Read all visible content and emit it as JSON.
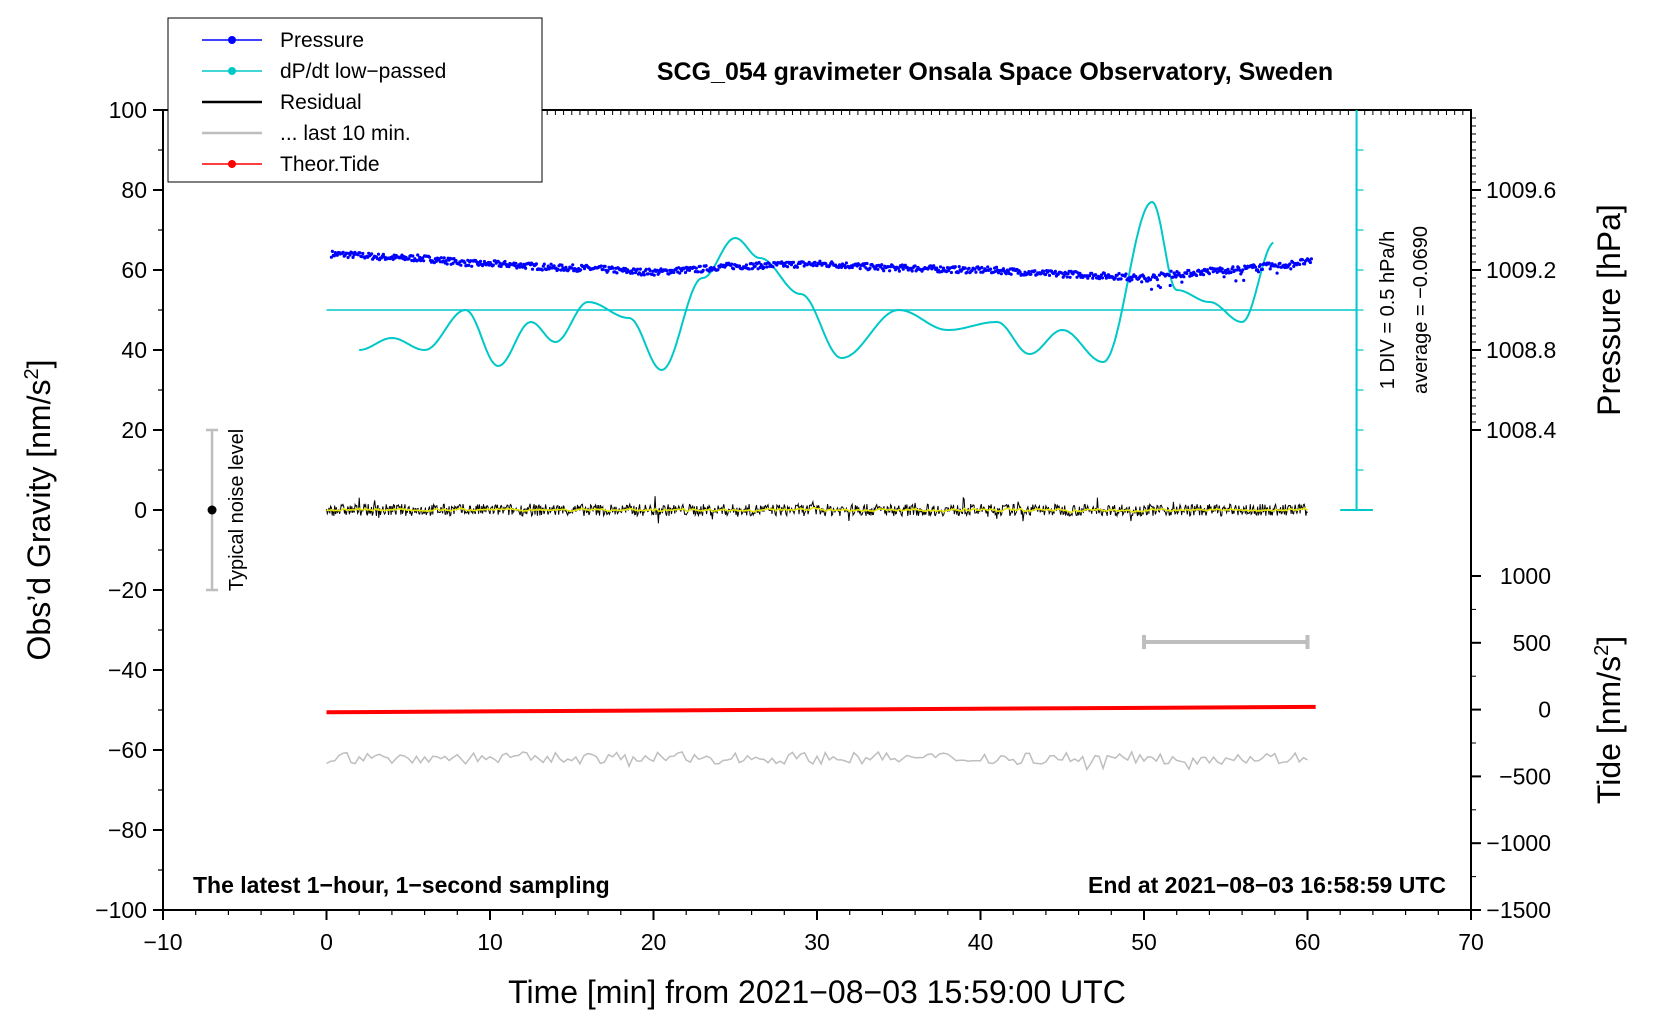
{
  "chart_data": {
    "type": "line",
    "title": "SCG_054 gravimeter Onsala Space Observatory, Sweden",
    "xlabel": "Time [min] from 2021−08−03 15:59:00 UTC",
    "ylabel_left": "Obs’d Gravity [nm/s",
    "ylabel_left_sup": "2",
    "ylabel_left_end": "]",
    "ylabel_right_pressure": "Pressure [hPa]",
    "ylabel_right_tide": "Tide [nm/s",
    "ylabel_right_tide_sup": "2",
    "ylabel_right_tide_end": "]",
    "xlim": [
      -10,
      70
    ],
    "ylim": [
      -100,
      100
    ],
    "x_ticks": [
      "−10",
      "0",
      "10",
      "20",
      "30",
      "40",
      "50",
      "60",
      "70"
    ],
    "y_ticks": [
      "100",
      "80",
      "60",
      "40",
      "20",
      "0",
      "−20",
      "−40",
      "−60",
      "−80",
      "−100"
    ],
    "pressure_ticks": [
      "1009.6",
      "1009.2",
      "1008.8",
      "1008.4"
    ],
    "pressure_tick_values": [
      1009.6,
      1009.2,
      1008.8,
      1008.4
    ],
    "pressure_range_hpa": [
      1008.4,
      1009.6
    ],
    "tide_ticks": [
      "1000",
      "500",
      "0",
      "−500",
      "−1000",
      "−1500"
    ],
    "tide_tick_values": [
      1000,
      500,
      0,
      -500,
      -1000,
      -1500
    ],
    "legend": [
      {
        "label": "Pressure",
        "color": "#0000ff",
        "marker": true
      },
      {
        "label": "dP/dt low−passed",
        "color": "#00c8c8",
        "marker": true
      },
      {
        "label": "Residual",
        "color": "#000000",
        "marker": false
      },
      {
        "label": "... last 10 min.",
        "color": "#bebebe",
        "marker": false
      },
      {
        "label": "Theor.Tide",
        "color": "#ff0000",
        "marker": true
      }
    ],
    "series": [
      {
        "name": "Pressure (hPa)",
        "x": [
          0,
          5,
          10,
          15,
          20,
          22,
          25,
          30,
          35,
          40,
          45,
          48,
          50,
          52,
          55,
          58,
          60
        ],
        "values": [
          1009.28,
          1009.26,
          1009.23,
          1009.21,
          1009.19,
          1009.2,
          1009.22,
          1009.23,
          1009.21,
          1009.2,
          1009.18,
          1009.17,
          1009.16,
          1009.18,
          1009.2,
          1009.22,
          1009.24
        ]
      },
      {
        "name": "dP/dt low-passed (plotted on gravity axis)",
        "x": [
          2,
          4,
          6,
          8.5,
          10.5,
          12.5,
          14,
          16,
          18.5,
          20.5,
          23,
          25,
          26.5,
          29,
          31.5,
          35,
          38,
          41,
          43,
          45,
          47.5,
          50.5,
          52,
          54,
          56,
          58
        ],
        "values": [
          40,
          43,
          40,
          50,
          36,
          47,
          42,
          52,
          48,
          35,
          58,
          68,
          63,
          54,
          38,
          50,
          45,
          47,
          39,
          45,
          37,
          77,
          55,
          52,
          47,
          67
        ]
      },
      {
        "name": "Residual",
        "x": [
          0,
          60
        ],
        "values": [
          0,
          0
        ]
      },
      {
        "name": "last 10 min. (offset trace)",
        "x": [
          0,
          60
        ],
        "values": [
          -62,
          -62
        ]
      },
      {
        "name": "Theor.Tide (nm/s2)",
        "x": [
          0,
          60.5
        ],
        "values": [
          -20,
          20
        ]
      }
    ],
    "zero_reference_level": 50,
    "pressure_scale_text": "1 DIV = 0.5 hPa/h",
    "average_text": "average = −0.0690",
    "noise_label": "Typical noise level",
    "noise_bar": [
      -20,
      20
    ],
    "noise_x": -7,
    "last10_bar": [
      50,
      60
    ],
    "last10_bar_y": -33,
    "bottom_left_note": "The latest 1−hour, 1−second sampling",
    "bottom_right_note": "End at 2021−08−03 16:58:59 UTC",
    "grid": false
  }
}
